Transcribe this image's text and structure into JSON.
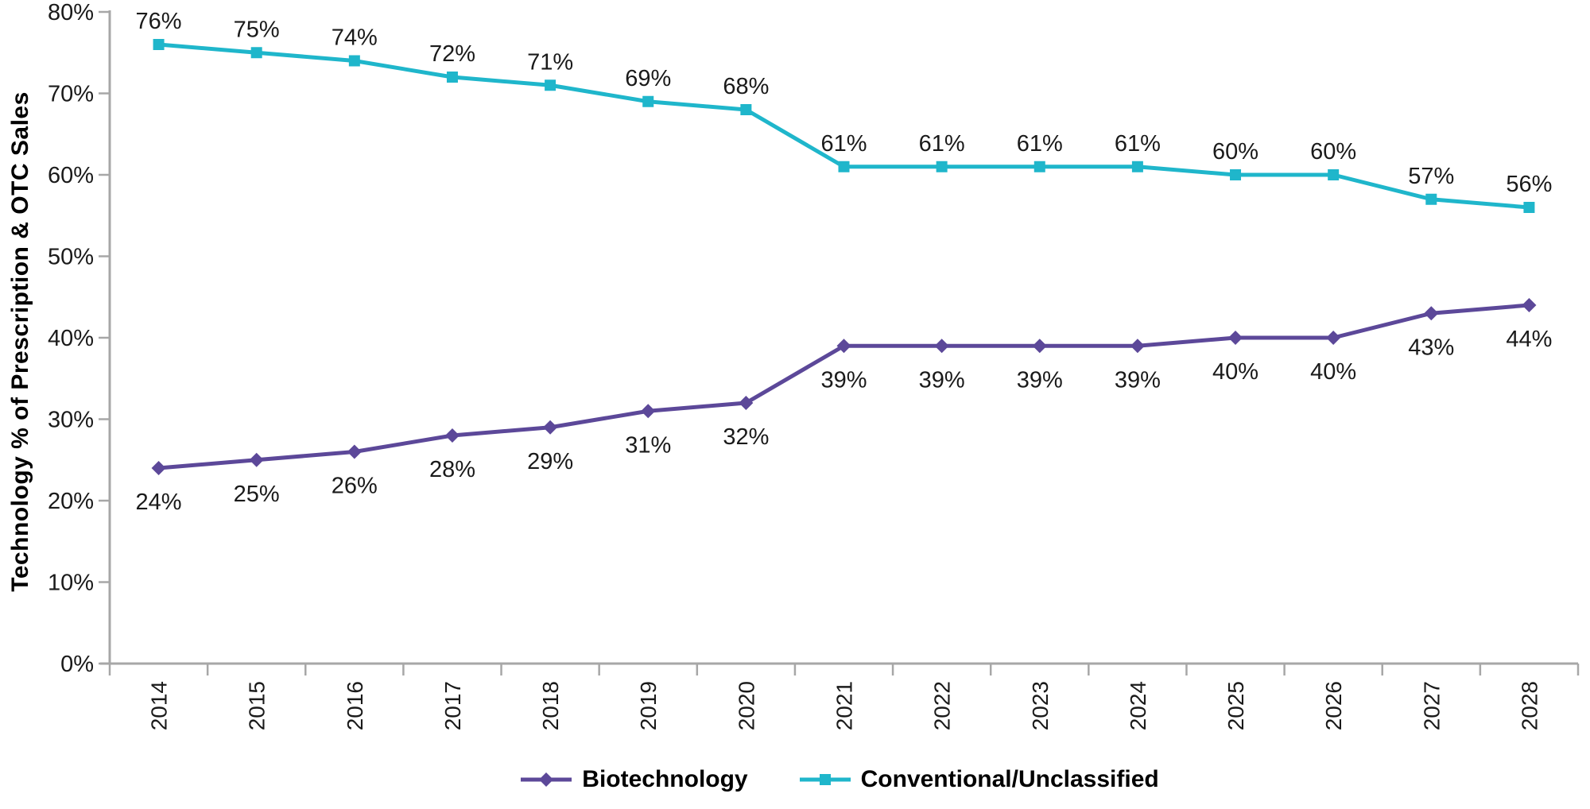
{
  "chart_data": {
    "type": "line",
    "title": "",
    "xlabel": "",
    "ylabel": "Technology % of Prescription & OTC Sales",
    "categories": [
      "2014",
      "2015",
      "2016",
      "2017",
      "2018",
      "2019",
      "2020",
      "2021",
      "2022",
      "2023",
      "2024",
      "2025",
      "2026",
      "2027",
      "2028"
    ],
    "y_axis": {
      "min": 0,
      "max": 80,
      "step": 10,
      "tick_labels": [
        "0%",
        "10%",
        "20%",
        "30%",
        "40%",
        "50%",
        "60%",
        "70%",
        "80%"
      ]
    },
    "grid": false,
    "legend_position": "bottom-center",
    "series": [
      {
        "name": "Biotechnology",
        "color": "#5C4899",
        "marker": "diamond",
        "label_position": "below",
        "values": [
          24,
          25,
          26,
          28,
          29,
          31,
          32,
          39,
          39,
          39,
          39,
          40,
          40,
          43,
          44
        ],
        "labels": [
          "24%",
          "25%",
          "26%",
          "28%",
          "29%",
          "31%",
          "32%",
          "39%",
          "39%",
          "39%",
          "39%",
          "40%",
          "40%",
          "43%",
          "44%"
        ]
      },
      {
        "name": "Conventional/Unclassified",
        "color": "#1FB6CB",
        "marker": "square",
        "label_position": "above",
        "values": [
          76,
          75,
          74,
          72,
          71,
          69,
          68,
          61,
          61,
          61,
          61,
          60,
          60,
          57,
          56
        ],
        "labels": [
          "76%",
          "75%",
          "74%",
          "72%",
          "71%",
          "69%",
          "68%",
          "61%",
          "61%",
          "61%",
          "61%",
          "60%",
          "60%",
          "57%",
          "56%"
        ]
      }
    ],
    "colors": {
      "axis": "#A7A7A7",
      "tick_text": "#1A1A1A",
      "data_label_text": "#1A1A1A",
      "category_text": "#1A1A1A"
    }
  }
}
